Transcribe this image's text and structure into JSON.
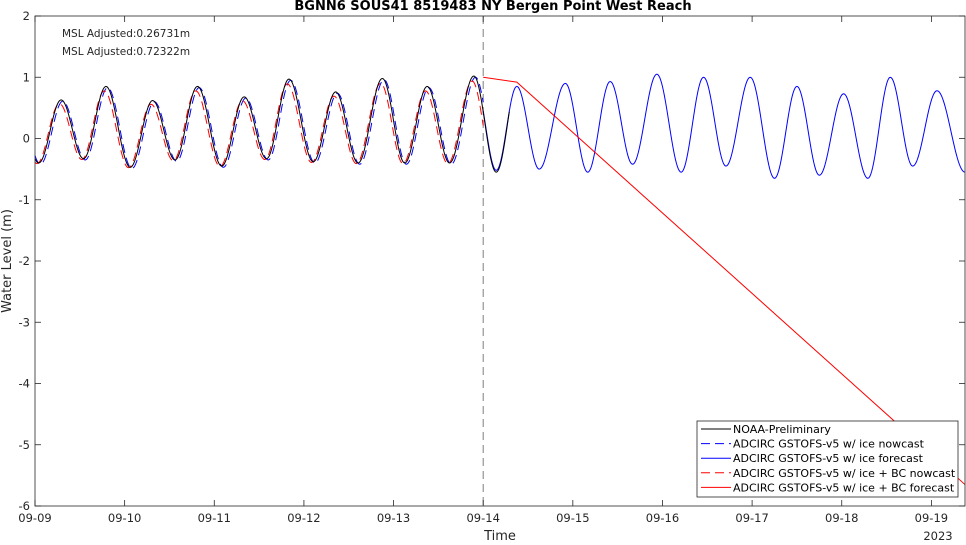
{
  "chart_data": {
    "type": "line",
    "title": "BGNN6 SOUS41 8519483 NY Bergen Point West Reach",
    "xlabel": "Time",
    "ylabel": "Water Level (m)",
    "ylim": [
      -6,
      2
    ],
    "yticks": [
      "-6",
      "-5",
      "-4",
      "-3",
      "-2",
      "-1",
      "0",
      "1",
      "2"
    ],
    "xlim": [
      "2023-09-09 00:00",
      "2023-09-19 09:00"
    ],
    "xtick_labels": [
      "09-09",
      "09-10",
      "09-11",
      "09-12",
      "09-13",
      "09-14",
      "09-15",
      "09-16",
      "09-17",
      "09-18",
      "09-19"
    ],
    "year_label": "2023",
    "nowcast_boundary": "2023-09-14 00:00",
    "annotations": [
      {
        "text": "MSL Adjusted:0.26731m",
        "color": "#0000ff"
      },
      {
        "text": "MSL Adjusted:0.72322m",
        "color": "#ff0000"
      }
    ],
    "legend": {
      "placement": "bottom-right"
    },
    "series": [
      {
        "name": "NOAA-Preliminary",
        "color": "#000000",
        "dash": "solid",
        "x_start": "2023-09-09 00:00",
        "x_end": "2023-09-14 07:00",
        "high_tides": [
          [
            "09-09 07:00",
            0.63
          ],
          [
            "09-09 19:00",
            0.85
          ],
          [
            "09-10 07:30",
            0.62
          ],
          [
            "09-10 19:30",
            0.85
          ],
          [
            "09-11 08:00",
            0.68
          ],
          [
            "09-11 20:00",
            0.97
          ],
          [
            "09-12 08:30",
            0.76
          ],
          [
            "09-12 21:00",
            0.98
          ],
          [
            "09-13 09:00",
            0.85
          ],
          [
            "09-13 21:30",
            1.02
          ]
        ],
        "low_tides": [
          [
            "09-09 01:00",
            -0.4
          ],
          [
            "09-09 13:00",
            -0.33
          ],
          [
            "09-10 01:30",
            -0.47
          ],
          [
            "09-10 13:30",
            -0.35
          ],
          [
            "09-11 02:00",
            -0.45
          ],
          [
            "09-11 14:00",
            -0.33
          ],
          [
            "09-12 02:30",
            -0.38
          ],
          [
            "09-12 14:30",
            -0.4
          ],
          [
            "09-13 03:00",
            -0.4
          ],
          [
            "09-13 15:00",
            -0.4
          ],
          [
            "09-14 03:30",
            -0.55
          ]
        ]
      },
      {
        "name": "ADCIRC GSTOFS-v5 w/ ice nowcast",
        "color": "#0000ff",
        "dash": "dashed",
        "x_start": "2023-09-09 00:00",
        "x_end": "2023-09-14 00:00"
      },
      {
        "name": "ADCIRC GSTOFS-v5 w/ ice forecast",
        "color": "#0000ff",
        "dash": "solid",
        "x_start": "2023-09-14 00:00",
        "x_end": "2023-09-19 09:00",
        "high_tides": [
          [
            "09-14 09:00",
            0.85
          ],
          [
            "09-14 22:00",
            0.9
          ],
          [
            "09-15 10:00",
            0.93
          ],
          [
            "09-15 22:30",
            1.05
          ],
          [
            "09-16 11:00",
            1.0
          ],
          [
            "09-16 23:30",
            1.0
          ],
          [
            "09-17 12:00",
            0.85
          ],
          [
            "09-18 00:30",
            0.73
          ],
          [
            "09-18 13:00",
            1.0
          ],
          [
            "09-19 01:30",
            0.78
          ]
        ],
        "low_tides": [
          [
            "09-14 03:30",
            -0.52
          ],
          [
            "09-14 15:00",
            -0.5
          ],
          [
            "09-15 04:00",
            -0.55
          ],
          [
            "09-15 16:00",
            -0.42
          ],
          [
            "09-16 05:00",
            -0.55
          ],
          [
            "09-16 17:00",
            -0.45
          ],
          [
            "09-17 06:00",
            -0.65
          ],
          [
            "09-17 18:00",
            -0.6
          ],
          [
            "09-18 07:00",
            -0.65
          ],
          [
            "09-18 19:00",
            -0.45
          ],
          [
            "09-19 09:00",
            -0.55
          ]
        ]
      },
      {
        "name": "ADCIRC GSTOFS-v5 w/ ice + BC nowcast",
        "color": "#ff0000",
        "dash": "dashed",
        "x_start": "2023-09-09 00:00",
        "x_end": "2023-09-14 00:00"
      },
      {
        "name": "ADCIRC GSTOFS-v5 w/ ice + BC forecast",
        "color": "#ff0000",
        "dash": "solid",
        "x": [
          "2023-09-14 00:00",
          "2023-09-14 09:00",
          "2023-09-19 09:00"
        ],
        "y": [
          1.0,
          0.92,
          -5.65
        ]
      }
    ]
  }
}
